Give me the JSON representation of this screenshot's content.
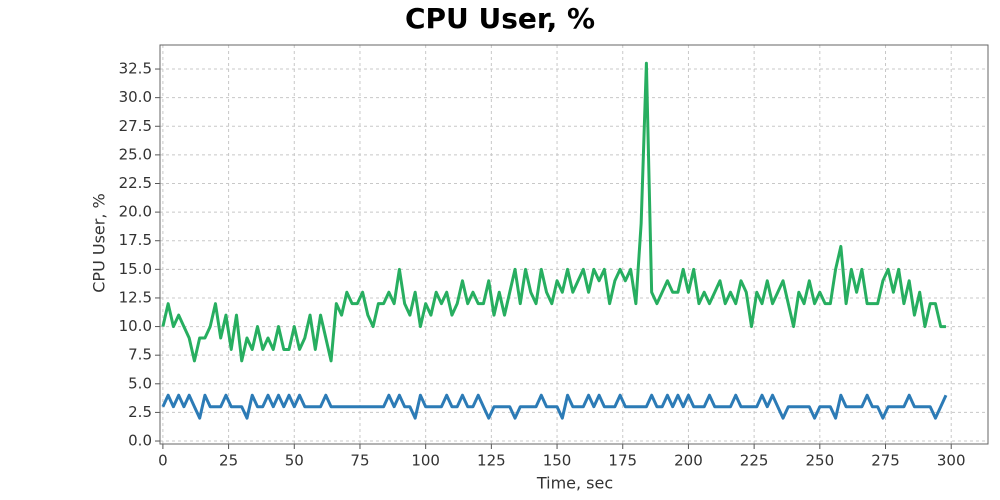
{
  "chart_data": {
    "type": "line",
    "title": "CPU User, %",
    "x_label": "Time, sec",
    "y_label": "CPU User, %",
    "x": [
      0,
      2,
      4,
      6,
      8,
      10,
      12,
      14,
      16,
      18,
      20,
      22,
      24,
      26,
      28,
      30,
      32,
      34,
      36,
      38,
      40,
      42,
      44,
      46,
      48,
      50,
      52,
      54,
      56,
      58,
      60,
      62,
      64,
      66,
      68,
      70,
      72,
      74,
      76,
      78,
      80,
      82,
      84,
      86,
      88,
      90,
      92,
      94,
      96,
      98,
      100,
      102,
      104,
      106,
      108,
      110,
      112,
      114,
      116,
      118,
      120,
      122,
      124,
      126,
      128,
      130,
      132,
      134,
      136,
      138,
      140,
      142,
      144,
      146,
      148,
      150,
      152,
      154,
      156,
      158,
      160,
      162,
      164,
      166,
      168,
      170,
      172,
      174,
      176,
      178,
      180,
      182,
      184,
      186,
      188,
      190,
      192,
      194,
      196,
      198,
      200,
      202,
      204,
      206,
      208,
      210,
      212,
      214,
      216,
      218,
      220,
      222,
      224,
      226,
      228,
      230,
      232,
      234,
      236,
      238,
      240,
      242,
      244,
      246,
      248,
      250,
      252,
      254,
      256,
      258,
      260,
      262,
      264,
      266,
      268,
      270,
      272,
      274,
      276,
      278,
      280,
      282,
      284,
      286,
      288,
      290,
      292,
      294,
      296,
      298
    ],
    "series": [
      {
        "color": "#27ae60",
        "values": [
          10,
          12,
          10,
          11,
          10,
          9,
          7,
          9,
          9,
          10,
          12,
          9,
          11,
          8,
          11,
          7,
          9,
          8,
          10,
          8,
          9,
          8,
          10,
          8,
          8,
          10,
          8,
          9,
          11,
          8,
          11,
          9,
          7,
          12,
          11,
          13,
          12,
          12,
          13,
          11,
          10,
          12,
          12,
          13,
          12,
          15,
          12,
          11,
          13,
          10,
          12,
          11,
          13,
          12,
          13,
          11,
          12,
          14,
          12,
          13,
          12,
          12,
          14,
          11,
          13,
          11,
          13,
          15,
          12,
          15,
          13,
          12,
          15,
          13,
          12,
          14,
          13,
          15,
          13,
          14,
          15,
          13,
          15,
          14,
          15,
          12,
          14,
          15,
          14,
          15,
          12,
          19,
          33,
          13,
          12,
          13,
          14,
          13,
          13,
          15,
          13,
          15,
          12,
          13,
          12,
          13,
          14,
          12,
          13,
          12,
          14,
          13,
          10,
          13,
          12,
          14,
          12,
          13,
          14,
          12,
          10,
          13,
          12,
          14,
          12,
          13,
          12,
          12,
          15,
          17,
          12,
          15,
          13,
          15,
          12,
          12,
          12,
          14,
          15,
          13,
          15,
          12,
          14,
          11,
          13,
          10,
          12,
          12,
          10,
          10
        ]
      },
      {
        "color": "#2c7bb6",
        "values": [
          3,
          4,
          3,
          4,
          3,
          4,
          3,
          2,
          4,
          3,
          3,
          3,
          4,
          3,
          3,
          3,
          2,
          4,
          3,
          3,
          4,
          3,
          4,
          3,
          4,
          3,
          4,
          3,
          3,
          3,
          3,
          4,
          3,
          3,
          3,
          3,
          3,
          3,
          3,
          3,
          3,
          3,
          3,
          4,
          3,
          4,
          3,
          3,
          2,
          4,
          3,
          3,
          3,
          3,
          4,
          3,
          3,
          4,
          3,
          3,
          4,
          3,
          2,
          3,
          3,
          3,
          3,
          2,
          3,
          3,
          3,
          3,
          4,
          3,
          3,
          3,
          2,
          4,
          3,
          3,
          3,
          4,
          3,
          4,
          3,
          3,
          3,
          4,
          3,
          3,
          3,
          3,
          3,
          4,
          3,
          3,
          4,
          3,
          4,
          3,
          4,
          3,
          3,
          3,
          4,
          3,
          3,
          3,
          3,
          4,
          3,
          3,
          3,
          3,
          4,
          3,
          4,
          3,
          2,
          3,
          3,
          3,
          3,
          3,
          2,
          3,
          3,
          3,
          2,
          4,
          3,
          3,
          3,
          3,
          4,
          3,
          3,
          2,
          3,
          3,
          3,
          3,
          4,
          3,
          3,
          3,
          3,
          2,
          3,
          4
        ]
      }
    ],
    "xlim": [
      -1.1,
      314
    ],
    "ylim": [
      -0.26,
      34.6
    ],
    "xticks": [
      0,
      25,
      50,
      75,
      100,
      125,
      150,
      175,
      200,
      225,
      250,
      275,
      300
    ],
    "yticks": [
      {
        "value": 0,
        "label": "0.0"
      },
      2.5,
      {
        "value": 5,
        "label": "5.0"
      },
      7.5,
      {
        "value": 10,
        "label": "10.0"
      },
      12.5,
      {
        "value": 15,
        "label": "15.0"
      },
      17.5,
      {
        "value": 20,
        "label": "20.0"
      },
      22.5,
      {
        "value": 25,
        "label": "25.0"
      },
      27.5,
      {
        "value": 30,
        "label": "30.0"
      },
      32.5
    ],
    "grid": true
  }
}
